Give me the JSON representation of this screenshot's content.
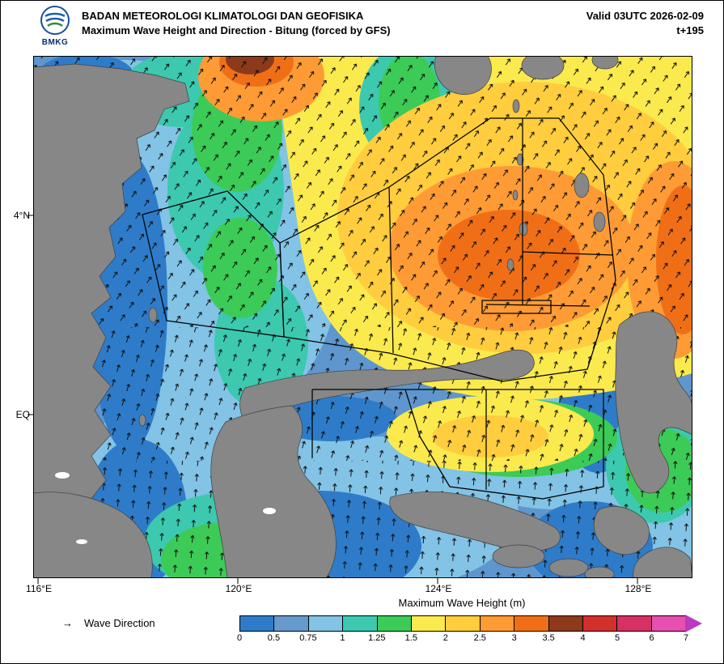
{
  "header": {
    "org": "BADAN METEOROLOGI KLIMATOLOGI DAN GEOFISIKA",
    "product": "Maximum Wave Height and Direction - Bitung (forced by GFS)",
    "valid": "Valid 03UTC 2026-02-09",
    "tstep": "t+195",
    "logo_label": "BMKG"
  },
  "map": {
    "y_ticks": [
      "4°N",
      "EQ"
    ],
    "x_ticks": [
      "116°E",
      "120°E",
      "124°E",
      "128°E"
    ],
    "land_color": "#878787",
    "ocean_base_color": "#5E96CD"
  },
  "legend": {
    "arrow_glyph": "→",
    "wave_direction_label": "Wave Direction",
    "colorbar_title": "Maximum Wave Height (m)",
    "ticks": [
      "0",
      "0.5",
      "0.75",
      "1",
      "1.25",
      "1.5",
      "2",
      "2.5",
      "3",
      "3.5",
      "4",
      "5",
      "6",
      "7"
    ],
    "colors": [
      "#2E7CC9",
      "#6699CC",
      "#82C3E6",
      "#3CC9AF",
      "#3CCB56",
      "#FBEA4D",
      "#FFCD3D",
      "#FF9B35",
      "#F06F16",
      "#8C3A1B",
      "#D2302C",
      "#D63064",
      "#E84FB0"
    ],
    "arrow_color": "#B83BC0"
  },
  "chart_data": {
    "type": "heatmap",
    "title": "Maximum Wave Height and Direction - Bitung (forced by GFS)",
    "valid_time": "03UTC 2026-02-09",
    "forecast_step": "t+195",
    "x_axis": {
      "ticks": [
        "116°E",
        "120°E",
        "124°E",
        "128°E"
      ]
    },
    "y_axis": {
      "ticks": [
        "4°N",
        "EQ"
      ]
    },
    "colorbar": {
      "label": "Maximum Wave Height (m)",
      "levels_m": [
        0,
        0.5,
        0.75,
        1,
        1.25,
        1.5,
        2,
        2.5,
        3,
        3.5,
        4,
        5,
        6,
        7
      ],
      "colors": [
        "#2E7CC9",
        "#6699CC",
        "#82C3E6",
        "#3CC9AF",
        "#3CCB56",
        "#FBEA4D",
        "#FFCD3D",
        "#FF9B35",
        "#F06F16",
        "#8C3A1B",
        "#D2302C",
        "#D63064",
        "#E84FB0"
      ],
      "over_color": "#B83BC0"
    },
    "notable_features": [
      "3.5-4 m maximum (brown patch) at northern map edge near 120°E",
      "2.5-3.5 m (orange) over northern Sulawesi Sea / Pacific around 124°E-129°E, 2°N-5°N",
      "1.5-2.5 m (yellow-gold) broad region north of Sulawesi northern arm",
      "1.5-2 m (yellow-green tongue) in northern Maluku Sea near 124°E-126°E, EQ",
      "0.5-1 m (blue) Makassar Strait, Gulf of Tomini and southern waters"
    ]
  }
}
